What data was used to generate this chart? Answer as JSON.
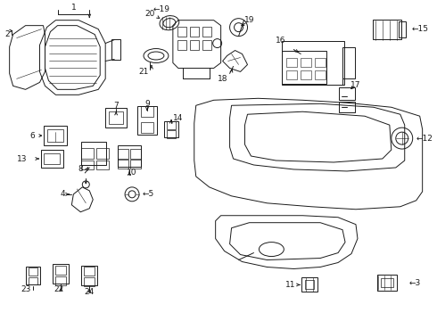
{
  "bg_color": "#ffffff",
  "line_color": "#1a1a1a",
  "figsize": [
    4.9,
    3.6
  ],
  "dpi": 100
}
